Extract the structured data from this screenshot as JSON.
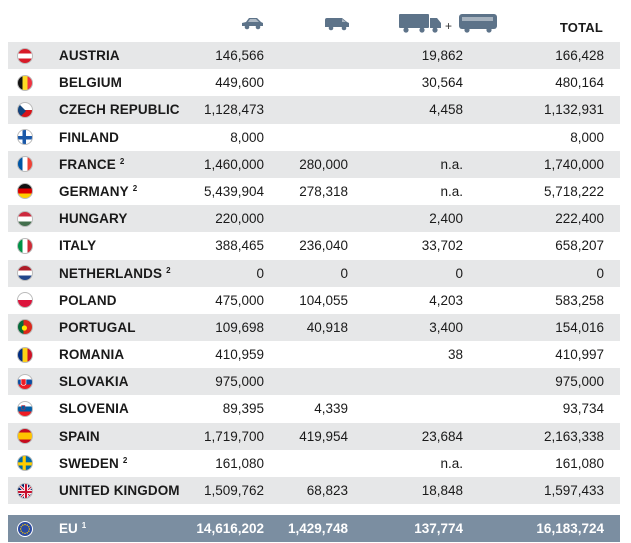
{
  "header": {
    "col1_icon": "car-icon",
    "col2_icon": "van-icon",
    "col3_icon": "truck-icon",
    "col3_plus": "+",
    "col3_icon2": "bus-icon",
    "total_label": "TOTAL",
    "icon_color": "#5d7389"
  },
  "rows": [
    {
      "country": "AUSTRIA",
      "sup": "",
      "cars": "146,566",
      "vans": "",
      "trucks_buses": "19,862",
      "total": "166,428"
    },
    {
      "country": "BELGIUM",
      "sup": "",
      "cars": "449,600",
      "vans": "",
      "trucks_buses": "30,564",
      "total": "480,164"
    },
    {
      "country": "CZECH REPUBLIC",
      "sup": "",
      "cars": "1,128,473",
      "vans": "",
      "trucks_buses": "4,458",
      "total": "1,132,931"
    },
    {
      "country": "FINLAND",
      "sup": "",
      "cars": "8,000",
      "vans": "",
      "trucks_buses": "",
      "total": "8,000"
    },
    {
      "country": "FRANCE",
      "sup": "2",
      "cars": "1,460,000",
      "vans": "280,000",
      "trucks_buses": "n.a.",
      "total": "1,740,000"
    },
    {
      "country": "GERMANY",
      "sup": "2",
      "cars": "5,439,904",
      "vans": "278,318",
      "trucks_buses": "n.a.",
      "total": "5,718,222"
    },
    {
      "country": "HUNGARY",
      "sup": "",
      "cars": "220,000",
      "vans": "",
      "trucks_buses": "2,400",
      "total": "222,400"
    },
    {
      "country": "ITALY",
      "sup": "",
      "cars": "388,465",
      "vans": "236,040",
      "trucks_buses": "33,702",
      "total": "658,207"
    },
    {
      "country": "NETHERLANDS",
      "sup": "2",
      "cars": "0",
      "vans": "0",
      "trucks_buses": "0",
      "total": "0"
    },
    {
      "country": "POLAND",
      "sup": "",
      "cars": "475,000",
      "vans": "104,055",
      "trucks_buses": "4,203",
      "total": "583,258"
    },
    {
      "country": "PORTUGAL",
      "sup": "",
      "cars": "109,698",
      "vans": "40,918",
      "trucks_buses": "3,400",
      "total": "154,016"
    },
    {
      "country": "ROMANIA",
      "sup": "",
      "cars": "410,959",
      "vans": "",
      "trucks_buses": "38",
      "total": "410,997"
    },
    {
      "country": "SLOVAKIA",
      "sup": "",
      "cars": "975,000",
      "vans": "",
      "trucks_buses": "",
      "total": "975,000"
    },
    {
      "country": "SLOVENIA",
      "sup": "",
      "cars": "89,395",
      "vans": "4,339",
      "trucks_buses": "",
      "total": "93,734"
    },
    {
      "country": "SPAIN",
      "sup": "",
      "cars": "1,719,700",
      "vans": "419,954",
      "trucks_buses": "23,684",
      "total": "2,163,338"
    },
    {
      "country": "SWEDEN",
      "sup": "2",
      "cars": "161,080",
      "vans": "",
      "trucks_buses": "n.a.",
      "total": "161,080"
    },
    {
      "country": "UNITED KINGDOM",
      "sup": "",
      "cars": "1,509,762",
      "vans": "68,823",
      "trucks_buses": "18,848",
      "total": "1,597,433"
    }
  ],
  "eu_total": {
    "country": "EU",
    "sup": "1",
    "cars": "14,616,202",
    "vans": "1,429,748",
    "trucks_buses": "137,774",
    "total": "16,183,724"
  },
  "colors": {
    "row_stripe": "#e6e7e8",
    "eu_band": "#7b8ea1"
  }
}
